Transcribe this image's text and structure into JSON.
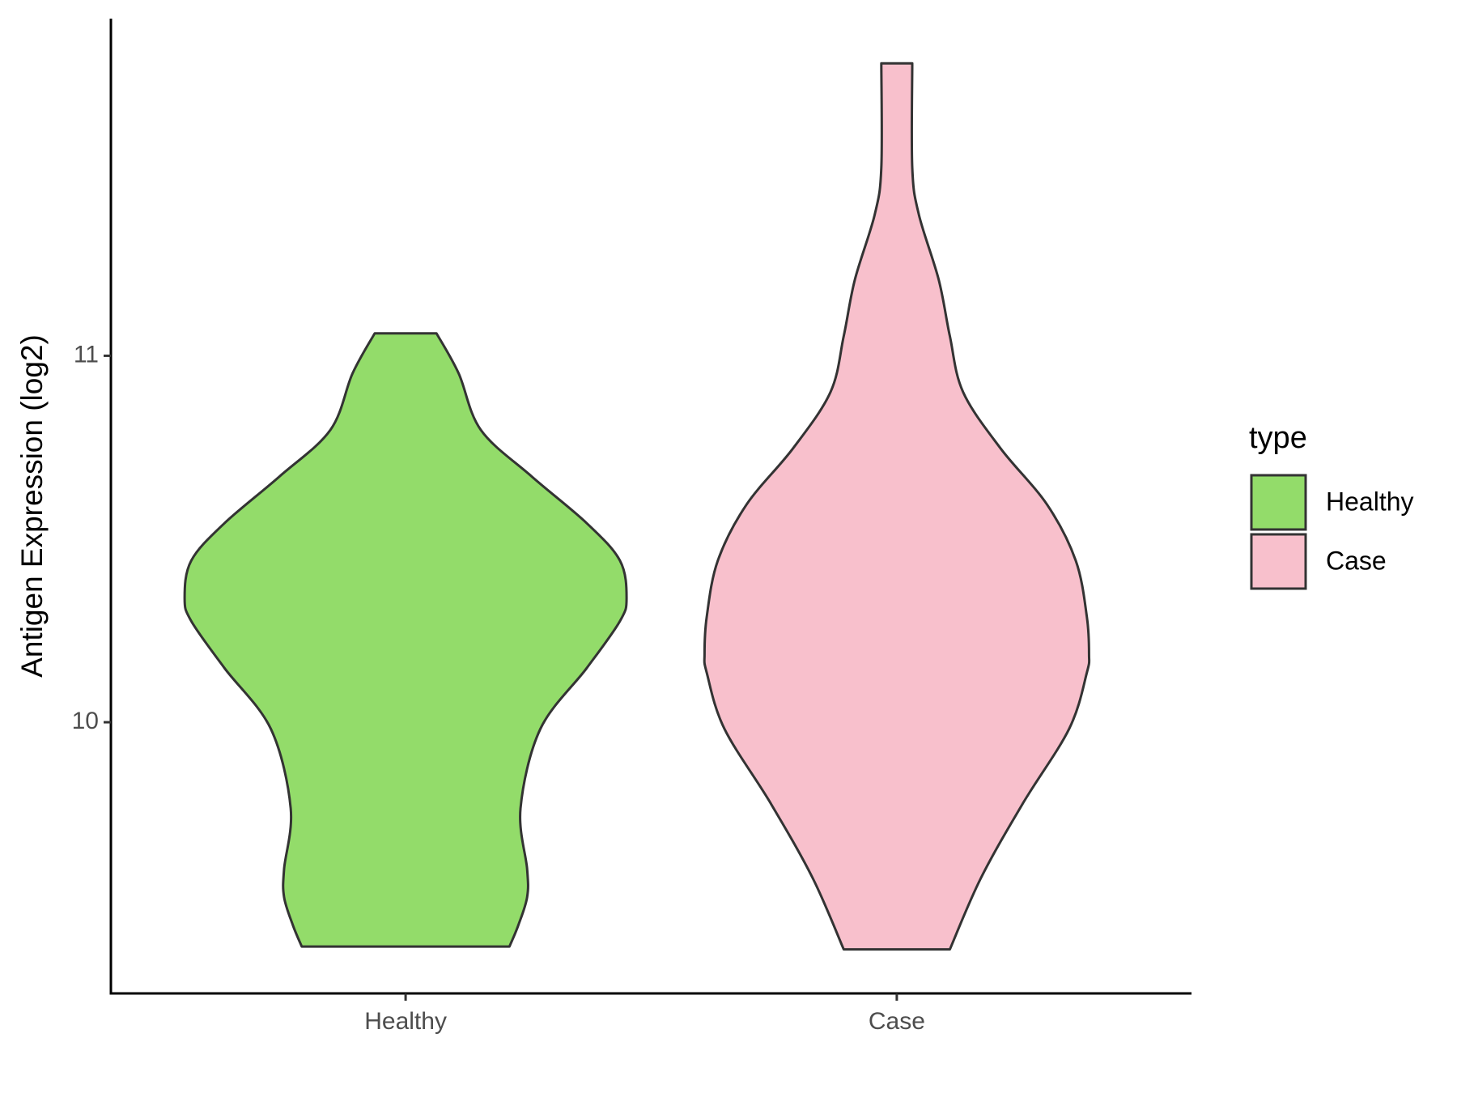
{
  "chart_data": {
    "type": "violin",
    "ylabel": "Antigen Expression (log2)",
    "legend_title": "type",
    "categories": [
      "Healthy",
      "Case"
    ],
    "series": [
      {
        "name": "Healthy",
        "color": "#93dc6a",
        "y": [
          11.061,
          10.952,
          10.798,
          10.671,
          10.543,
          10.441,
          10.339,
          10.276,
          10.148,
          9.982,
          9.765,
          9.599,
          9.523,
          9.446,
          9.388
        ],
        "density": [
          0.14,
          0.24,
          0.34,
          0.57,
          0.82,
          0.97,
          1.0,
          0.97,
          0.82,
          0.61,
          0.52,
          0.55,
          0.55,
          0.51,
          0.47
        ]
      },
      {
        "name": "Case",
        "color": "#f8c0cc",
        "y": [
          11.798,
          11.513,
          11.385,
          11.207,
          11.054,
          10.901,
          10.747,
          10.594,
          10.441,
          10.288,
          10.186,
          10.135,
          9.982,
          9.778,
          9.574,
          9.38
        ],
        "density": [
          0.07,
          0.07,
          0.1,
          0.19,
          0.24,
          0.3,
          0.47,
          0.68,
          0.81,
          0.86,
          0.87,
          0.86,
          0.78,
          0.57,
          0.38,
          0.24
        ]
      }
    ],
    "ylim": [
      9.26,
      11.92
    ],
    "yticks": [
      10,
      11
    ],
    "legend": "right"
  }
}
